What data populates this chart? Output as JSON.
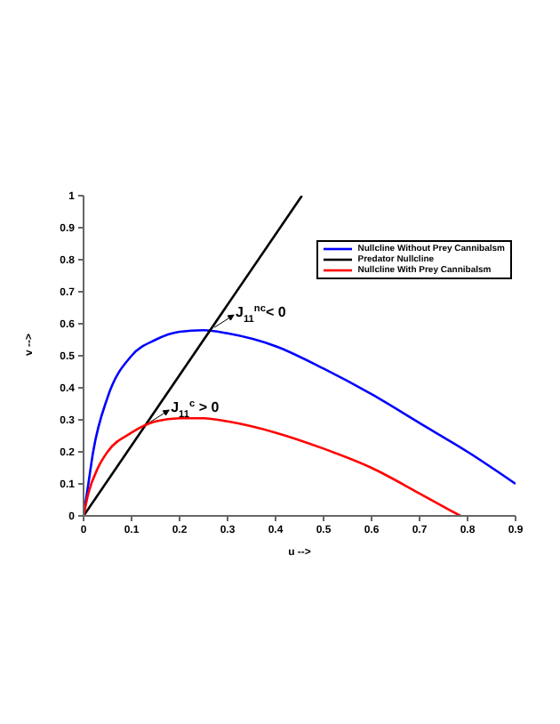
{
  "chart_data": {
    "type": "line",
    "xlabel": "u -->",
    "ylabel": "v -->",
    "xlim": [
      0,
      0.9
    ],
    "ylim": [
      0,
      1
    ],
    "xticks": [
      0,
      0.1,
      0.2,
      0.3,
      0.4,
      0.5,
      0.6,
      0.7,
      0.8,
      0.9
    ],
    "yticks": [
      0,
      0.1,
      0.2,
      0.3,
      0.4,
      0.5,
      0.6,
      0.7,
      0.8,
      0.9,
      1
    ],
    "grid": false,
    "legend": "top right",
    "marker": "none",
    "line_style": "solid",
    "series": [
      {
        "name": "Nullcline Without Prey Cannibalsm",
        "color": "#0000ff",
        "x": [
          0,
          0.01,
          0.02,
          0.05,
          0.1,
          0.15,
          0.2,
          0.25,
          0.3,
          0.4,
          0.5,
          0.6,
          0.7,
          0.8,
          0.9
        ],
        "values": [
          0,
          0.1,
          0.2,
          0.37,
          0.5,
          0.55,
          0.575,
          0.58,
          0.57,
          0.53,
          0.46,
          0.38,
          0.29,
          0.2,
          0.1
        ]
      },
      {
        "name": "Predator Nullcline",
        "color": "#000000",
        "x": [
          0,
          0.455
        ],
        "values": [
          0,
          1
        ]
      },
      {
        "name": "Nullcline With Prey Cannibalsm",
        "color": "#ff0000",
        "x": [
          0,
          0.01,
          0.03,
          0.05,
          0.1,
          0.15,
          0.2,
          0.25,
          0.3,
          0.4,
          0.5,
          0.6,
          0.7,
          0.785
        ],
        "values": [
          0,
          0.07,
          0.15,
          0.2,
          0.26,
          0.295,
          0.305,
          0.305,
          0.295,
          0.26,
          0.21,
          0.15,
          0.07,
          0
        ]
      }
    ],
    "annotations": [
      {
        "text": "J$_{11}$$^{nc}$< 0",
        "x": 0.265,
        "y": 0.583
      },
      {
        "text": "J$_{11}$$^{c}$ > 0",
        "x": 0.13,
        "y": 0.286
      }
    ]
  }
}
